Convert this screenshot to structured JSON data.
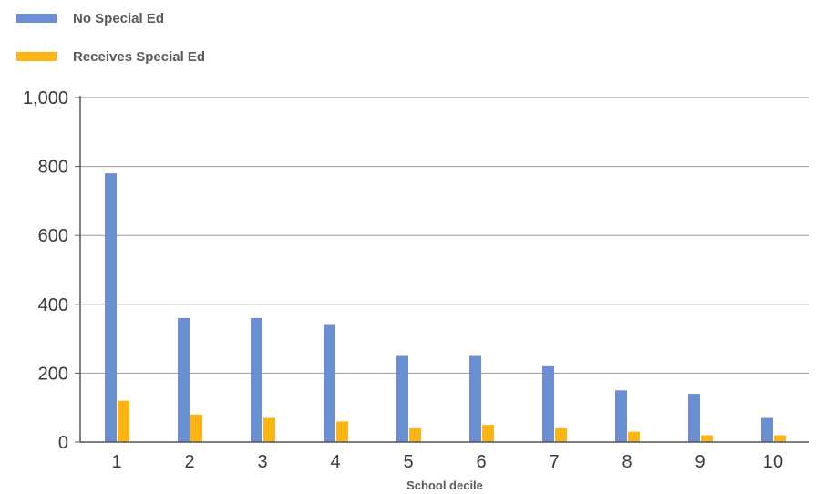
{
  "chart_data": {
    "type": "bar",
    "title": "",
    "xlabel": "School decile",
    "ylabel": "",
    "ylim": [
      0,
      1000
    ],
    "yticks": [
      "0",
      "200",
      "400",
      "600",
      "800",
      "1,000"
    ],
    "ytick_values": [
      0,
      200,
      400,
      600,
      800,
      1000
    ],
    "categories": [
      "1",
      "2",
      "3",
      "4",
      "5",
      "6",
      "7",
      "8",
      "9",
      "10"
    ],
    "series": [
      {
        "name": "No Special Ed",
        "color": "#6b8dd1",
        "values": [
          780,
          360,
          360,
          340,
          250,
          250,
          220,
          150,
          140,
          70
        ]
      },
      {
        "name": "Receives Special Ed",
        "color": "#fdb515",
        "values": [
          120,
          80,
          70,
          60,
          40,
          50,
          40,
          30,
          20,
          20
        ]
      }
    ],
    "grid": true,
    "legend_position": "top-left"
  }
}
